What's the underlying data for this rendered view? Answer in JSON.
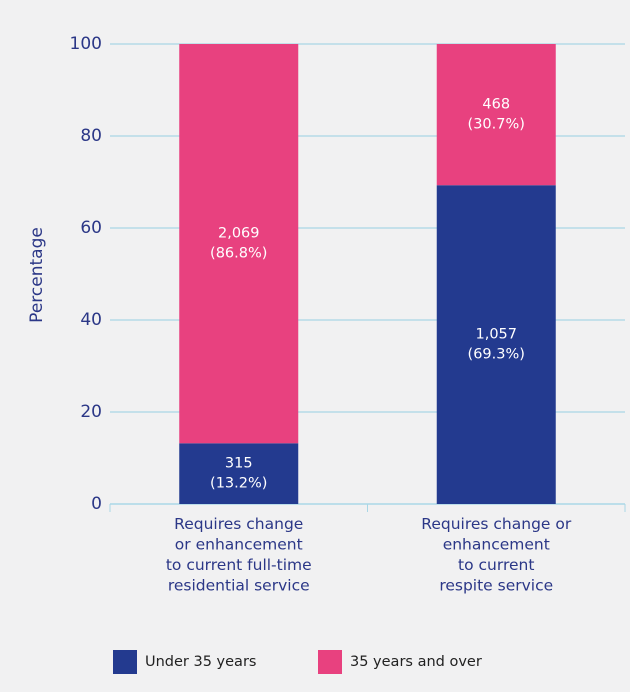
{
  "chart_data": {
    "type": "stacked_bar",
    "y_label": "Percentage",
    "categories": [
      "Requires change\nor enhancement\nto current full-time\nresidential service",
      "Requires change or\nenhancement\nto current\nrespite service"
    ],
    "series": [
      {
        "name": "Under 35 years",
        "color": "#233a8f",
        "values": [
          13.2,
          69.3
        ],
        "value_labels": [
          "315\n(13.2%)",
          "1,057\n(69.3%)"
        ]
      },
      {
        "name": "35 years and over",
        "color": "#e8417f",
        "values": [
          86.8,
          30.7
        ],
        "value_labels": [
          "2,069\n(86.8%)",
          "468\n(30.7%)"
        ]
      }
    ],
    "ylim": [
      0,
      100
    ],
    "yticks": [
      0,
      20,
      40,
      60,
      80,
      100
    ],
    "grid": true
  }
}
